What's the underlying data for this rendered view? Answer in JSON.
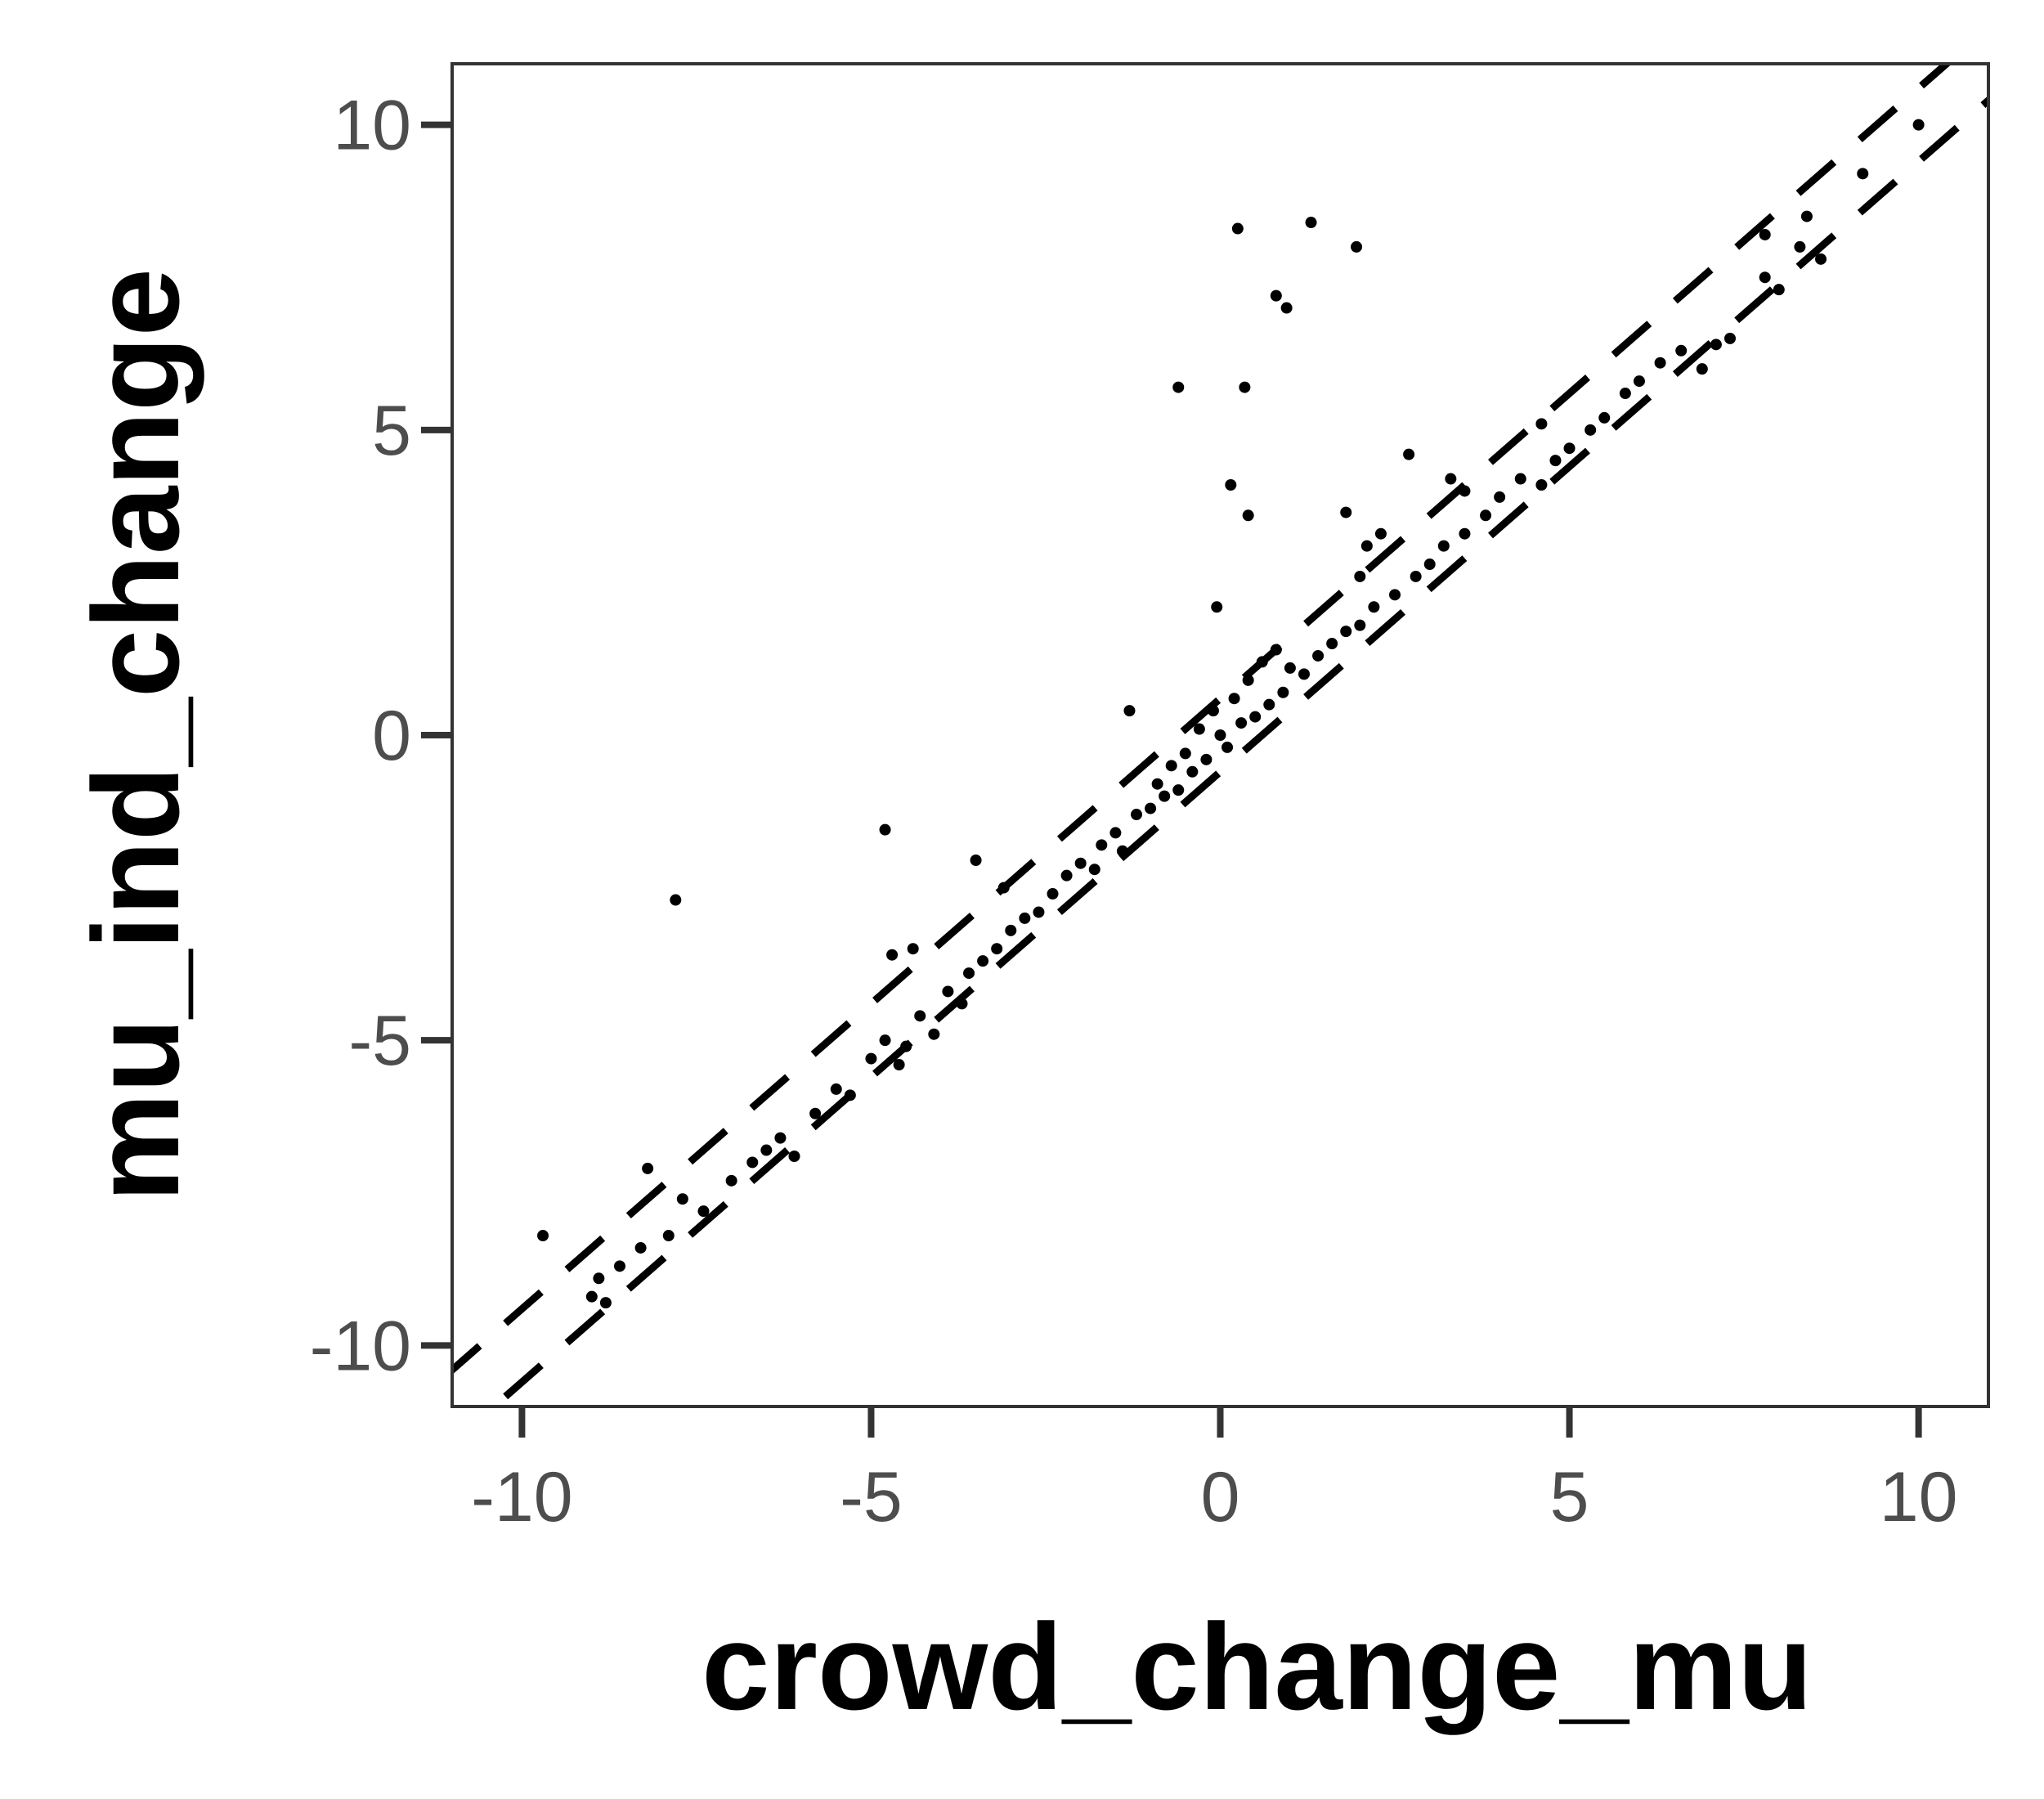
{
  "chart_data": {
    "type": "scatter",
    "title": "",
    "xlabel": "crowd_change_mu",
    "ylabel": "mu_ind_change",
    "xlim": [
      -11,
      11
    ],
    "ylim": [
      -11,
      11
    ],
    "x_ticks": [
      -10,
      -5,
      0,
      5,
      10
    ],
    "x_tick_labels": [
      "-10",
      "-5",
      "0",
      "5",
      "10"
    ],
    "y_ticks": [
      -10,
      -5,
      0,
      5,
      10
    ],
    "y_tick_labels": [
      "-10",
      "-5",
      "0",
      "5",
      "10"
    ],
    "grid": false,
    "reference_lines": [
      {
        "style": "dashed",
        "slope": 1,
        "intercept": 0.6
      },
      {
        "style": "dashed",
        "slope": 1,
        "intercept": -0.6
      }
    ],
    "points_note": "",
    "outliers": [
      {
        "x": 0.25,
        "y": 8.3
      },
      {
        "x": 1.3,
        "y": 8.4
      },
      {
        "x": 1.95,
        "y": 8.0
      },
      {
        "x": 0.8,
        "y": 7.2
      },
      {
        "x": 0.95,
        "y": 7.0
      },
      {
        "x": -0.6,
        "y": 5.7
      },
      {
        "x": 0.35,
        "y": 5.7
      },
      {
        "x": 2.7,
        "y": 4.6
      },
      {
        "x": 0.15,
        "y": 4.1
      },
      {
        "x": 0.4,
        "y": 3.6
      },
      {
        "x": 1.8,
        "y": 3.65
      },
      {
        "x": 3.3,
        "y": 4.2
      },
      {
        "x": 3.5,
        "y": 4.0
      },
      {
        "x": 4.6,
        "y": 5.1
      },
      {
        "x": 2.3,
        "y": 3.3
      },
      {
        "x": 2.1,
        "y": 3.1
      },
      {
        "x": -1.3,
        "y": 0.4
      },
      {
        "x": -4.8,
        "y": -1.55
      },
      {
        "x": -7.8,
        "y": -2.7
      },
      {
        "x": -3.5,
        "y": -2.05
      },
      {
        "x": -9.7,
        "y": -8.2
      },
      {
        "x": -8.2,
        "y": -7.1
      },
      {
        "x": -0.05,
        "y": 2.1
      },
      {
        "x": 7.8,
        "y": 8.2
      },
      {
        "x": 8.4,
        "y": 8.5
      },
      {
        "x": 10.0,
        "y": 10.0
      },
      {
        "x": -4.7,
        "y": -3.6
      },
      {
        "x": -4.4,
        "y": -3.5
      },
      {
        "x": -3.1,
        "y": -2.5
      },
      {
        "x": 2.0,
        "y": 2.6
      }
    ],
    "series": [
      {
        "points": [
          [
            -9.0,
            -9.2
          ],
          [
            -8.8,
            -9.3
          ],
          [
            -8.9,
            -8.9
          ],
          [
            -8.6,
            -8.7
          ],
          [
            -8.3,
            -8.4
          ],
          [
            -7.9,
            -8.2
          ],
          [
            -7.7,
            -7.6
          ],
          [
            -7.4,
            -7.8
          ],
          [
            -7.0,
            -7.3
          ],
          [
            -6.7,
            -7.0
          ],
          [
            -6.5,
            -6.8
          ],
          [
            -6.3,
            -6.6
          ],
          [
            -6.1,
            -6.9
          ],
          [
            -5.8,
            -6.2
          ],
          [
            -5.5,
            -5.8
          ],
          [
            -5.3,
            -5.9
          ],
          [
            -5.0,
            -5.3
          ],
          [
            -4.8,
            -5.0
          ],
          [
            -4.6,
            -5.4
          ],
          [
            -4.5,
            -5.1
          ],
          [
            -4.3,
            -4.6
          ],
          [
            -4.1,
            -4.9
          ],
          [
            -3.9,
            -4.2
          ],
          [
            -3.7,
            -4.4
          ],
          [
            -3.6,
            -3.9
          ],
          [
            -3.4,
            -3.7
          ],
          [
            -3.2,
            -3.5
          ],
          [
            -3.0,
            -3.2
          ],
          [
            -2.8,
            -3.0
          ],
          [
            -2.6,
            -2.9
          ],
          [
            -2.4,
            -2.6
          ],
          [
            -2.2,
            -2.3
          ],
          [
            -2.0,
            -2.1
          ],
          [
            -1.8,
            -2.2
          ],
          [
            -1.7,
            -1.8
          ],
          [
            -1.5,
            -1.6
          ],
          [
            -1.4,
            -1.9
          ],
          [
            -1.2,
            -1.3
          ],
          [
            -1.0,
            -1.2
          ],
          [
            -0.9,
            -0.8
          ],
          [
            -0.8,
            -1.0
          ],
          [
            -0.7,
            -0.5
          ],
          [
            -0.6,
            -0.9
          ],
          [
            -0.5,
            -0.3
          ],
          [
            -0.4,
            -0.6
          ],
          [
            -0.3,
            0.1
          ],
          [
            -0.2,
            -0.4
          ],
          [
            -0.1,
            0.4
          ],
          [
            0.0,
            0.0
          ],
          [
            0.1,
            -0.2
          ],
          [
            0.2,
            0.6
          ],
          [
            0.3,
            0.2
          ],
          [
            0.4,
            0.9
          ],
          [
            0.5,
            0.3
          ],
          [
            0.6,
            1.2
          ],
          [
            0.7,
            0.5
          ],
          [
            0.8,
            1.4
          ],
          [
            0.9,
            0.7
          ],
          [
            1.0,
            1.1
          ],
          [
            1.2,
            1.0
          ],
          [
            1.4,
            1.3
          ],
          [
            1.6,
            1.5
          ],
          [
            1.8,
            1.7
          ],
          [
            2.0,
            1.8
          ],
          [
            2.2,
            2.1
          ],
          [
            2.5,
            2.3
          ],
          [
            2.8,
            2.6
          ],
          [
            3.0,
            2.8
          ],
          [
            3.2,
            3.1
          ],
          [
            3.5,
            3.3
          ],
          [
            3.8,
            3.6
          ],
          [
            4.0,
            3.9
          ],
          [
            4.3,
            4.2
          ],
          [
            4.6,
            4.1
          ],
          [
            4.8,
            4.5
          ],
          [
            5.0,
            4.7
          ],
          [
            5.3,
            5.0
          ],
          [
            5.5,
            5.2
          ],
          [
            5.8,
            5.6
          ],
          [
            6.0,
            5.8
          ],
          [
            6.3,
            6.1
          ],
          [
            6.6,
            6.3
          ],
          [
            6.9,
            6.0
          ],
          [
            7.1,
            6.4
          ],
          [
            7.3,
            6.5
          ],
          [
            7.8,
            7.5
          ],
          [
            8.0,
            7.3
          ],
          [
            8.3,
            8.0
          ],
          [
            8.6,
            7.8
          ],
          [
            9.2,
            9.2
          ]
        ]
      }
    ]
  }
}
